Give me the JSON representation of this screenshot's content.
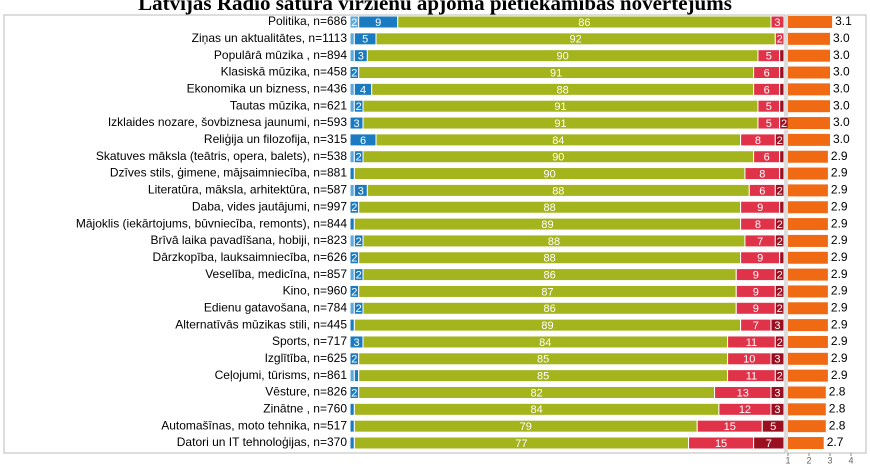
{
  "chart_data": [
    {
      "type": "stacked-bar",
      "title": "Latvijas Radio satura virzienu apjoma pietiekamības novērtējums",
      "categories": [
        "Politika, n=686",
        "Ziņas un aktualitātes, n=1113",
        "Populārā mūzika , n=894",
        "Klasiskā mūzika, n=458",
        "Ekonomika un bizness, n=436",
        "Tautas mūzika, n=621",
        "Izklaides nozare, šovbiznesa jaunumi, n=593",
        "Reliģija un filozofija, n=315",
        "Skatuves māksla (teātris, opera, balets), n=538",
        "Dzīves stils, ģimene, mājsaimniecība, n=881",
        "Literatūra, māksla, arhitektūra, n=587",
        "Daba, vides jautājumi, n=997",
        "Mājoklis (iekārtojums, būvniecība, remonts), n=844",
        "Brīvā laika pavadīšana, hobiji, n=823",
        "Dārzkopība, lauksaimniecība, n=626",
        "Veselība, medicīna, n=857",
        "Kino, n=960",
        "Edienu gatavošana, n=784",
        "Alternatīvās mūzikas stili, n=445",
        "Sports, n=717",
        "Izglītība, n=625",
        "Ceļojumi, tūrisms, n=861",
        "Vēsture, n=826",
        "Zinātne , n=760",
        "Automašīnas, moto tehnika, n=517",
        "Datori un IT tehnoloģijas, n=370"
      ],
      "series": [
        {
          "color": "#5fa8dc",
          "values": [
            2,
            1,
            1,
            0,
            1,
            1,
            0,
            0,
            1,
            0,
            1,
            0,
            0,
            1,
            0,
            1,
            0,
            1,
            0,
            0,
            0,
            1,
            0,
            0,
            0,
            0
          ]
        },
        {
          "color": "#1b7bc0",
          "values": [
            9,
            5,
            3,
            2,
            4,
            2,
            3,
            6,
            2,
            1,
            3,
            2,
            1,
            2,
            2,
            2,
            2,
            2,
            1,
            3,
            2,
            1,
            2,
            1,
            1,
            1
          ]
        },
        {
          "color": "#a4b41c",
          "values": [
            86,
            92,
            90,
            91,
            88,
            91,
            91,
            84,
            90,
            90,
            88,
            88,
            89,
            88,
            88,
            86,
            87,
            86,
            89,
            84,
            85,
            85,
            82,
            84,
            79,
            77
          ]
        },
        {
          "color": "#e0334a",
          "values": [
            3,
            2,
            5,
            6,
            6,
            5,
            5,
            8,
            6,
            8,
            6,
            9,
            8,
            7,
            9,
            9,
            9,
            9,
            7,
            11,
            10,
            11,
            13,
            12,
            15,
            15
          ]
        },
        {
          "color": "#9b1020",
          "values": [
            0,
            0,
            1,
            1,
            1,
            1,
            2,
            2,
            1,
            1,
            2,
            1,
            2,
            2,
            1,
            2,
            2,
            2,
            3,
            2,
            3,
            2,
            3,
            3,
            5,
            7
          ]
        }
      ],
      "xlim": [
        0,
        100
      ]
    },
    {
      "type": "bar",
      "values": [
        3.1,
        3.0,
        3.0,
        3.0,
        3.0,
        3.0,
        3.0,
        3.0,
        2.9,
        2.9,
        2.9,
        2.9,
        2.9,
        2.9,
        2.9,
        2.9,
        2.9,
        2.9,
        2.9,
        2.9,
        2.9,
        2.9,
        2.8,
        2.8,
        2.8,
        2.7
      ],
      "value_labels": [
        "3.1",
        "3.0",
        "3.0",
        "3.0",
        "3.0",
        "3.0",
        "3.0",
        "3.0",
        "2.9",
        "2.9",
        "2.9",
        "2.9",
        "2.9",
        "2.9",
        "2.9",
        "2.9",
        "2.9",
        "2.9",
        "2.9",
        "2.9",
        "2.9",
        "2.9",
        "2.8",
        "2.8",
        "2.8",
        "2.7"
      ],
      "color": "#f06a14",
      "xlim": [
        1,
        4
      ],
      "xticks": [
        1,
        2,
        3,
        4
      ]
    }
  ]
}
